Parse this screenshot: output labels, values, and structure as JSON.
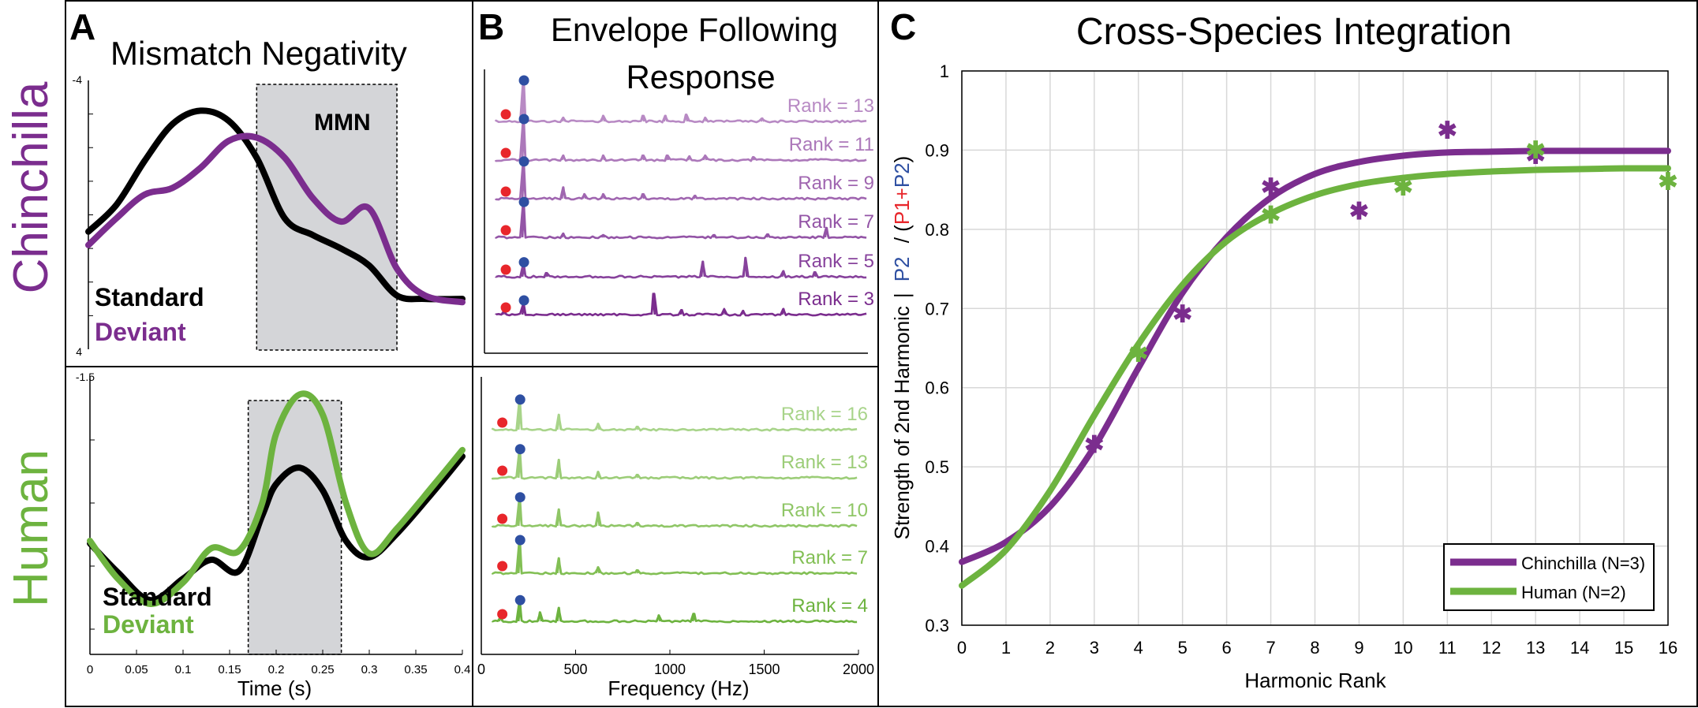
{
  "colors": {
    "purple": "#7B2D8E",
    "green": "#6DB33F",
    "black": "#000000",
    "mmn_box": "#D4D5D8",
    "red_dot": "#E8262B",
    "blue_dot": "#2E4FA2",
    "purple_ranks": [
      "#B88AC4",
      "#AC78BA",
      "#A066B0",
      "#9354A6",
      "#87429C",
      "#7B2D8E"
    ],
    "green_ranks": [
      "#A8D48A",
      "#9CCD78",
      "#8FC666",
      "#82BF54",
      "#6DB33F"
    ]
  },
  "row_labels": {
    "top": "Chinchilla",
    "bottom": "Human"
  },
  "panels": {
    "A": {
      "letter": "A",
      "title": "Mismatch Negativity",
      "annotation": "MMN",
      "xlabel": "Time (s)"
    },
    "B": {
      "letter": "B",
      "title_line1": "Envelope Following",
      "title_line2": "Response",
      "xlabel": "Frequency (Hz)"
    },
    "C": {
      "letter": "C",
      "title": "Cross-Species Integration",
      "xlabel": "Harmonic Rank"
    }
  },
  "chart_data": [
    {
      "id": "A_chinchilla",
      "type": "line",
      "y_tick_labels": [
        "-4",
        "4"
      ],
      "ylim": [
        -4,
        4
      ],
      "y_inverted": true,
      "xlim": [
        0,
        0.4
      ],
      "highlight": {
        "label": "MMN",
        "x_range": [
          0.18,
          0.33
        ]
      },
      "legend": [
        "Standard",
        "Deviant"
      ],
      "series": [
        {
          "name": "Standard",
          "color": "#000000",
          "x": [
            0,
            0.03,
            0.06,
            0.09,
            0.12,
            0.15,
            0.18,
            0.21,
            0.24,
            0.27,
            0.3,
            0.33,
            0.36,
            0.4
          ],
          "y": [
            0.5,
            -0.3,
            -1.6,
            -2.7,
            -3.1,
            -2.8,
            -1.7,
            0.1,
            0.6,
            1.0,
            1.5,
            2.4,
            2.5,
            2.5
          ]
        },
        {
          "name": "Deviant",
          "color": "#7B2D8E",
          "x": [
            0,
            0.03,
            0.06,
            0.09,
            0.12,
            0.15,
            0.18,
            0.21,
            0.24,
            0.27,
            0.3,
            0.33,
            0.36,
            0.4
          ],
          "y": [
            0.9,
            0.1,
            -0.6,
            -0.8,
            -1.4,
            -2.2,
            -2.3,
            -1.7,
            -0.5,
            0.2,
            -0.2,
            1.6,
            2.4,
            2.6
          ]
        }
      ]
    },
    {
      "id": "A_human",
      "type": "line",
      "y_tick_labels": [
        "-1.5"
      ],
      "ylim": [
        -1.5,
        0.7
      ],
      "y_inverted": true,
      "xlim": [
        0,
        0.4
      ],
      "x_ticks": [
        0,
        0.05,
        0.1,
        0.15,
        0.2,
        0.25,
        0.3,
        0.35,
        0.4
      ],
      "x_tick_labels": [
        "0",
        "0.05",
        "0.1",
        "0.15",
        "0.2",
        "0.25",
        "0.3",
        "0.35",
        "0.4"
      ],
      "highlight": {
        "x_range": [
          0.17,
          0.27
        ]
      },
      "legend": [
        "Standard",
        "Deviant"
      ],
      "series": [
        {
          "name": "Standard",
          "color": "#000000",
          "x": [
            0,
            0.03,
            0.065,
            0.1,
            0.13,
            0.16,
            0.185,
            0.2,
            0.225,
            0.25,
            0.275,
            0.3,
            0.33,
            0.37,
            0.4
          ],
          "y": [
            -0.18,
            0.05,
            0.27,
            0.1,
            -0.05,
            0.04,
            -0.4,
            -0.65,
            -0.78,
            -0.6,
            -0.2,
            -0.07,
            -0.26,
            -0.6,
            -0.87
          ]
        },
        {
          "name": "Deviant",
          "color": "#6DB33F",
          "x": [
            0,
            0.03,
            0.065,
            0.1,
            0.13,
            0.16,
            0.185,
            0.2,
            0.225,
            0.25,
            0.275,
            0.3,
            0.33,
            0.37,
            0.4
          ],
          "y": [
            -0.2,
            0.1,
            0.3,
            0.13,
            -0.14,
            -0.12,
            -0.5,
            -1.05,
            -1.36,
            -1.2,
            -0.5,
            -0.1,
            -0.3,
            -0.65,
            -0.92
          ]
        }
      ]
    },
    {
      "id": "B_chinchilla",
      "type": "line",
      "xlim": [
        0,
        2000
      ],
      "series_labels": [
        "Rank = 13",
        "Rank = 11",
        "Rank = 9",
        "Rank = 7",
        "Rank = 5",
        "Rank = 3"
      ],
      "f1_hz": 103,
      "f2_hz": 206,
      "series": [
        {
          "name": "Rank = 13",
          "peaks": [
            [
              206,
              1.0
            ],
            [
              412,
              0.1
            ],
            [
              618,
              0.15
            ],
            [
              824,
              0.15
            ],
            [
              945,
              0.15
            ],
            [
              1050,
              0.18
            ],
            [
              1150,
              0.1
            ],
            [
              1450,
              0.08
            ]
          ]
        },
        {
          "name": "Rank = 11",
          "peaks": [
            [
              206,
              1.0
            ],
            [
              412,
              0.12
            ],
            [
              618,
              0.12
            ],
            [
              824,
              0.12
            ],
            [
              950,
              0.12
            ],
            [
              1070,
              0.1
            ],
            [
              1150,
              0.12
            ],
            [
              1400,
              0.08
            ]
          ]
        },
        {
          "name": "Rank = 9",
          "peaks": [
            [
              206,
              0.9
            ],
            [
              412,
              0.3
            ],
            [
              520,
              0.12
            ],
            [
              618,
              0.12
            ],
            [
              824,
              0.12
            ],
            [
              1100,
              0.08
            ]
          ]
        },
        {
          "name": "Rank = 7",
          "peaks": [
            [
              206,
              0.85
            ],
            [
              412,
              0.1
            ],
            [
              618,
              0.06
            ],
            [
              1200,
              0.06
            ],
            [
              1480,
              0.08
            ],
            [
              1785,
              0.25
            ]
          ]
        },
        {
          "name": "Rank = 5",
          "peaks": [
            [
              206,
              0.3
            ],
            [
              320,
              0.1
            ],
            [
              1140,
              0.4
            ],
            [
              1360,
              0.5
            ],
            [
              1560,
              0.15
            ],
            [
              1720,
              0.12
            ]
          ]
        },
        {
          "name": "Rank = 3",
          "peaks": [
            [
              103,
              0.1
            ],
            [
              206,
              0.25
            ],
            [
              880,
              0.55
            ],
            [
              1030,
              0.12
            ],
            [
              1250,
              0.15
            ],
            [
              1350,
              0.1
            ],
            [
              1560,
              0.15
            ]
          ]
        }
      ]
    },
    {
      "id": "B_human",
      "type": "line",
      "xlim": [
        0,
        2000
      ],
      "x_ticks": [
        0,
        500,
        1000,
        1500,
        2000
      ],
      "x_tick_labels": [
        "0",
        "500",
        "1000",
        "1500",
        "2000"
      ],
      "series_labels": [
        "Rank = 16",
        "Rank = 13",
        "Rank = 10",
        "Rank = 7",
        "Rank = 4"
      ],
      "f1_hz": 103,
      "f2_hz": 206,
      "series": [
        {
          "name": "Rank = 16",
          "peaks": [
            [
              206,
              0.9
            ],
            [
              412,
              0.5
            ],
            [
              618,
              0.2
            ],
            [
              824,
              0.1
            ]
          ]
        },
        {
          "name": "Rank = 13",
          "peaks": [
            [
              206,
              0.85
            ],
            [
              412,
              0.6
            ],
            [
              618,
              0.2
            ],
            [
              824,
              0.1
            ]
          ]
        },
        {
          "name": "Rank = 10",
          "peaks": [
            [
              206,
              0.85
            ],
            [
              412,
              0.55
            ],
            [
              618,
              0.45
            ],
            [
              824,
              0.1
            ]
          ]
        },
        {
          "name": "Rank = 7",
          "peaks": [
            [
              206,
              1.0
            ],
            [
              412,
              0.5
            ],
            [
              618,
              0.2
            ],
            [
              824,
              0.1
            ]
          ]
        },
        {
          "name": "Rank = 4",
          "peaks": [
            [
              103,
              0.15
            ],
            [
              206,
              0.6
            ],
            [
              310,
              0.3
            ],
            [
              412,
              0.45
            ],
            [
              940,
              0.2
            ],
            [
              1130,
              0.25
            ]
          ]
        }
      ]
    },
    {
      "id": "C",
      "type": "scatter",
      "title": "Cross-Species Integration",
      "xlabel": "Harmonic Rank",
      "ylabel_parts": [
        "Strength of 2nd Harmonic",
        "|",
        "P2",
        " / (",
        "P1",
        "+",
        "P2",
        ")"
      ],
      "xlim": [
        0,
        16
      ],
      "ylim": [
        0.3,
        1.0
      ],
      "x_ticks": [
        0,
        1,
        2,
        3,
        4,
        5,
        6,
        7,
        8,
        9,
        10,
        11,
        12,
        13,
        14,
        15,
        16
      ],
      "y_ticks": [
        0.3,
        0.4,
        0.5,
        0.6,
        0.7,
        0.8,
        0.9,
        1.0
      ],
      "y_tick_labels": [
        "0.3",
        "0.4",
        "0.5",
        "0.6",
        "0.7",
        "0.8",
        "0.9",
        "1"
      ],
      "grid": true,
      "legend_position": "bottom-right",
      "series": [
        {
          "name": "Chinchilla (N=3)",
          "color": "#7B2D8E",
          "points_x": [
            3,
            5,
            7,
            9,
            11,
            13
          ],
          "points_y": [
            0.53,
            0.695,
            0.855,
            0.825,
            0.927,
            0.895
          ],
          "fit_x": [
            0,
            1,
            2,
            3,
            4,
            5,
            6,
            7,
            8,
            9,
            10,
            11,
            12,
            13,
            14,
            15,
            16
          ],
          "fit_y": [
            0.38,
            0.405,
            0.45,
            0.525,
            0.625,
            0.72,
            0.79,
            0.84,
            0.87,
            0.885,
            0.893,
            0.897,
            0.898,
            0.899,
            0.899,
            0.899,
            0.899
          ]
        },
        {
          "name": "Human (N=2)",
          "color": "#6DB33F",
          "points_x": [
            4,
            7,
            10,
            13,
            16
          ],
          "points_y": [
            0.645,
            0.82,
            0.855,
            0.902,
            0.862
          ],
          "fit_x": [
            0,
            1,
            2,
            3,
            4,
            5,
            6,
            7,
            8,
            9,
            10,
            11,
            12,
            13,
            14,
            15,
            16
          ],
          "fit_y": [
            0.35,
            0.395,
            0.47,
            0.565,
            0.655,
            0.73,
            0.785,
            0.82,
            0.843,
            0.857,
            0.865,
            0.87,
            0.873,
            0.875,
            0.876,
            0.877,
            0.877
          ]
        }
      ]
    }
  ]
}
